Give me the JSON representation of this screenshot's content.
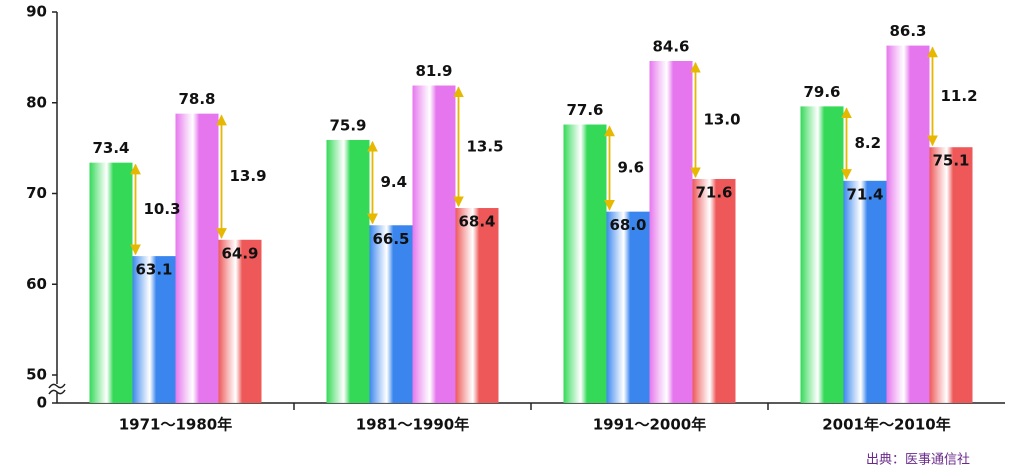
{
  "chart_data": {
    "type": "bar",
    "categories": [
      "1971〜1980年",
      "1981〜1990年",
      "1991〜2000年",
      "2001年〜2010年"
    ],
    "series": [
      {
        "color": "#33d957",
        "values": [
          73.4,
          75.9,
          77.6,
          79.6
        ]
      },
      {
        "color": "#3a86ee",
        "values": [
          63.1,
          66.5,
          68.0,
          71.4
        ],
        "value_labels": [
          "63.1",
          "66.5",
          "68.0",
          "71.4"
        ]
      },
      {
        "color": "#e676ee",
        "values": [
          78.8,
          81.9,
          84.6,
          86.3
        ]
      },
      {
        "color": "#ee5858",
        "values": [
          64.9,
          68.4,
          71.6,
          75.1
        ]
      }
    ],
    "differences": [
      {
        "between": [
          0,
          1
        ],
        "values": [
          10.3,
          9.4,
          9.6,
          8.2
        ]
      },
      {
        "between": [
          2,
          3
        ],
        "values": [
          13.9,
          13.5,
          13.0,
          11.2
        ],
        "value_labels": [
          "13.9",
          "13.5",
          "13.0",
          "11.2"
        ]
      }
    ],
    "arrow_color": "#e6b800",
    "ylim": [
      50,
      90
    ],
    "yticks": [
      0,
      50,
      60,
      70,
      80,
      90
    ],
    "axis_break": true,
    "source": "出典：医事通信社"
  }
}
